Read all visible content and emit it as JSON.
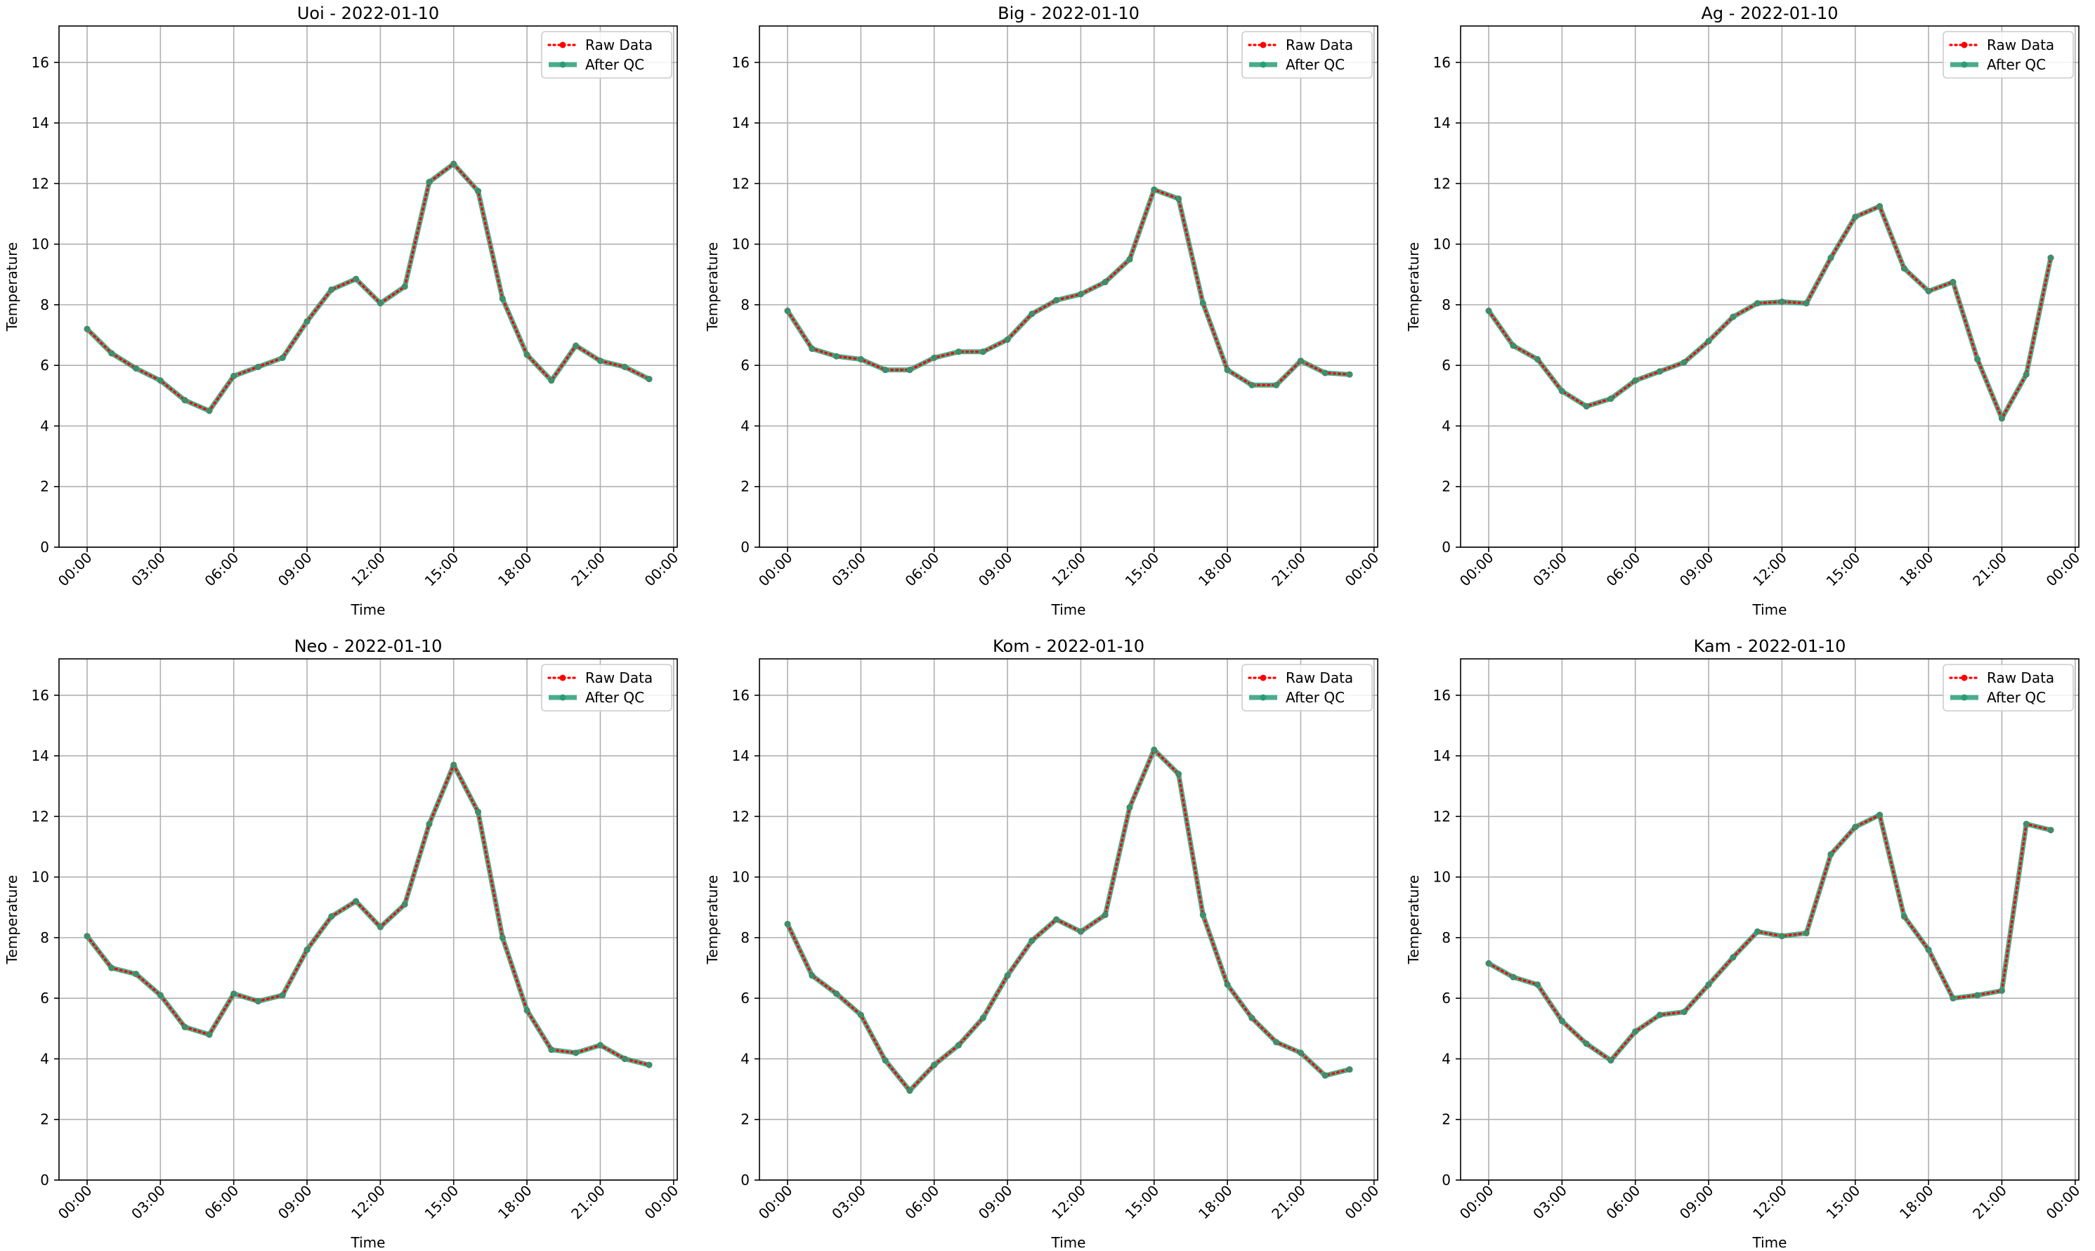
{
  "figure": {
    "legend": {
      "raw_label": "Raw Data",
      "qc_label": "After QC",
      "location": "upper right"
    }
  },
  "chart_data": [
    {
      "type": "line",
      "title": "Uoi - 2022-01-10",
      "xlabel": "Time",
      "ylabel": "Temperature",
      "x_tick_labels": [
        "00:00",
        "03:00",
        "06:00",
        "09:00",
        "12:00",
        "15:00",
        "18:00",
        "21:00",
        "00:00"
      ],
      "y_ticks": [
        0,
        2,
        4,
        6,
        8,
        10,
        12,
        14,
        16
      ],
      "ylim": [
        0,
        17.2
      ],
      "xlim_hours": [
        -1.15,
        24.15
      ],
      "grid": true,
      "legend_position": "top-right",
      "x_hours": [
        0,
        1,
        2,
        3,
        4,
        5,
        6,
        7,
        8,
        9,
        10,
        11,
        12,
        13,
        14,
        15,
        16,
        17,
        18,
        19,
        20,
        21,
        22,
        23
      ],
      "series": [
        {
          "name": "Raw Data",
          "color": "#ff0000",
          "style": "dotted",
          "values": [
            7.2,
            6.4,
            5.9,
            5.5,
            4.85,
            4.5,
            5.65,
            5.95,
            6.25,
            7.45,
            8.5,
            8.85,
            8.05,
            8.6,
            12.05,
            12.65,
            11.75,
            8.2,
            6.35,
            5.5,
            6.65,
            6.15,
            5.95,
            5.55
          ]
        },
        {
          "name": "After QC",
          "color": "#2a9d78",
          "style": "solid",
          "values": [
            7.2,
            6.4,
            5.9,
            5.5,
            4.85,
            4.5,
            5.65,
            5.95,
            6.25,
            7.45,
            8.5,
            8.85,
            8.05,
            8.6,
            12.05,
            12.65,
            11.75,
            8.2,
            6.35,
            5.5,
            6.65,
            6.15,
            5.95,
            5.55
          ]
        }
      ]
    },
    {
      "type": "line",
      "title": "Big - 2022-01-10",
      "xlabel": "Time",
      "ylabel": "Temperature",
      "x_tick_labels": [
        "00:00",
        "03:00",
        "06:00",
        "09:00",
        "12:00",
        "15:00",
        "18:00",
        "21:00",
        "00:00"
      ],
      "y_ticks": [
        0,
        2,
        4,
        6,
        8,
        10,
        12,
        14,
        16
      ],
      "ylim": [
        0,
        17.2
      ],
      "xlim_hours": [
        -1.15,
        24.15
      ],
      "grid": true,
      "legend_position": "top-right",
      "x_hours": [
        0,
        1,
        2,
        3,
        4,
        5,
        6,
        7,
        8,
        9,
        10,
        11,
        12,
        13,
        14,
        15,
        16,
        17,
        18,
        19,
        20,
        21,
        22,
        23
      ],
      "series": [
        {
          "name": "Raw Data",
          "color": "#ff0000",
          "style": "dotted",
          "values": [
            7.8,
            6.55,
            6.3,
            6.2,
            5.85,
            5.85,
            6.25,
            6.45,
            6.45,
            6.85,
            7.7,
            8.15,
            8.35,
            8.75,
            9.5,
            11.8,
            11.5,
            8.05,
            5.85,
            5.35,
            5.35,
            6.15,
            5.75,
            5.7
          ]
        },
        {
          "name": "After QC",
          "color": "#2a9d78",
          "style": "solid",
          "values": [
            7.8,
            6.55,
            6.3,
            6.2,
            5.85,
            5.85,
            6.25,
            6.45,
            6.45,
            6.85,
            7.7,
            8.15,
            8.35,
            8.75,
            9.5,
            11.8,
            11.5,
            8.05,
            5.85,
            5.35,
            5.35,
            6.15,
            5.75,
            5.7
          ]
        }
      ]
    },
    {
      "type": "line",
      "title": "Ag - 2022-01-10",
      "xlabel": "Time",
      "ylabel": "Temperature",
      "x_tick_labels": [
        "00:00",
        "03:00",
        "06:00",
        "09:00",
        "12:00",
        "15:00",
        "18:00",
        "21:00",
        "00:00"
      ],
      "y_ticks": [
        0,
        2,
        4,
        6,
        8,
        10,
        12,
        14,
        16
      ],
      "ylim": [
        0,
        17.2
      ],
      "xlim_hours": [
        -1.15,
        24.15
      ],
      "grid": true,
      "legend_position": "top-right",
      "x_hours": [
        0,
        1,
        2,
        3,
        4,
        5,
        6,
        7,
        8,
        9,
        10,
        11,
        12,
        13,
        14,
        15,
        16,
        17,
        18,
        19,
        20,
        21,
        22,
        23
      ],
      "series": [
        {
          "name": "Raw Data",
          "color": "#ff0000",
          "style": "dotted",
          "values": [
            7.8,
            6.65,
            6.2,
            5.15,
            4.65,
            4.9,
            5.5,
            5.8,
            6.1,
            6.8,
            7.6,
            8.05,
            8.1,
            8.05,
            9.55,
            10.9,
            11.25,
            9.2,
            8.45,
            8.75,
            6.2,
            4.25,
            5.7,
            9.55
          ]
        },
        {
          "name": "After QC",
          "color": "#2a9d78",
          "style": "solid",
          "values": [
            7.8,
            6.65,
            6.2,
            5.15,
            4.65,
            4.9,
            5.5,
            5.8,
            6.1,
            6.8,
            7.6,
            8.05,
            8.1,
            8.05,
            9.55,
            10.9,
            11.25,
            9.2,
            8.45,
            8.75,
            6.2,
            4.25,
            5.7,
            9.55
          ]
        }
      ]
    },
    {
      "type": "line",
      "title": "Neo - 2022-01-10",
      "xlabel": "Time",
      "ylabel": "Temperature",
      "x_tick_labels": [
        "00:00",
        "03:00",
        "06:00",
        "09:00",
        "12:00",
        "15:00",
        "18:00",
        "21:00",
        "00:00"
      ],
      "y_ticks": [
        0,
        2,
        4,
        6,
        8,
        10,
        12,
        14,
        16
      ],
      "ylim": [
        0,
        17.2
      ],
      "xlim_hours": [
        -1.15,
        24.15
      ],
      "grid": true,
      "legend_position": "top-right",
      "x_hours": [
        0,
        1,
        2,
        3,
        4,
        5,
        6,
        7,
        8,
        9,
        10,
        11,
        12,
        13,
        14,
        15,
        16,
        17,
        18,
        19,
        20,
        21,
        22,
        23
      ],
      "series": [
        {
          "name": "Raw Data",
          "color": "#ff0000",
          "style": "dotted",
          "values": [
            8.05,
            7.0,
            6.8,
            6.1,
            5.05,
            4.8,
            6.15,
            5.9,
            6.1,
            7.6,
            8.7,
            9.2,
            8.35,
            9.1,
            11.75,
            13.7,
            12.15,
            8.0,
            5.6,
            4.3,
            4.2,
            4.45,
            4.0,
            3.8
          ]
        },
        {
          "name": "After QC",
          "color": "#2a9d78",
          "style": "solid",
          "values": [
            8.05,
            7.0,
            6.8,
            6.1,
            5.05,
            4.8,
            6.15,
            5.9,
            6.1,
            7.6,
            8.7,
            9.2,
            8.35,
            9.1,
            11.75,
            13.7,
            12.15,
            8.0,
            5.6,
            4.3,
            4.2,
            4.45,
            4.0,
            3.8
          ]
        }
      ]
    },
    {
      "type": "line",
      "title": "Kom - 2022-01-10",
      "xlabel": "Time",
      "ylabel": "Temperature",
      "x_tick_labels": [
        "00:00",
        "03:00",
        "06:00",
        "09:00",
        "12:00",
        "15:00",
        "18:00",
        "21:00",
        "00:00"
      ],
      "y_ticks": [
        0,
        2,
        4,
        6,
        8,
        10,
        12,
        14,
        16
      ],
      "ylim": [
        0,
        17.2
      ],
      "xlim_hours": [
        -1.15,
        24.15
      ],
      "grid": true,
      "legend_position": "top-right",
      "x_hours": [
        0,
        1,
        2,
        3,
        4,
        5,
        6,
        7,
        8,
        9,
        10,
        11,
        12,
        13,
        14,
        15,
        16,
        17,
        18,
        19,
        20,
        21,
        22,
        23
      ],
      "series": [
        {
          "name": "Raw Data",
          "color": "#ff0000",
          "style": "dotted",
          "values": [
            8.45,
            6.75,
            6.15,
            5.45,
            3.95,
            2.95,
            3.8,
            4.45,
            5.35,
            6.75,
            7.9,
            8.6,
            8.2,
            8.75,
            12.3,
            14.2,
            13.4,
            8.75,
            6.45,
            5.35,
            4.55,
            4.2,
            3.45,
            3.65
          ]
        },
        {
          "name": "After QC",
          "color": "#2a9d78",
          "style": "solid",
          "values": [
            8.45,
            6.75,
            6.15,
            5.45,
            3.95,
            2.95,
            3.8,
            4.45,
            5.35,
            6.75,
            7.9,
            8.6,
            8.2,
            8.75,
            12.3,
            14.2,
            13.4,
            8.75,
            6.45,
            5.35,
            4.55,
            4.2,
            3.45,
            3.65
          ]
        }
      ]
    },
    {
      "type": "line",
      "title": "Kam - 2022-01-10",
      "xlabel": "Time",
      "ylabel": "Temperature",
      "x_tick_labels": [
        "00:00",
        "03:00",
        "06:00",
        "09:00",
        "12:00",
        "15:00",
        "18:00",
        "21:00",
        "00:00"
      ],
      "y_ticks": [
        0,
        2,
        4,
        6,
        8,
        10,
        12,
        14,
        16
      ],
      "ylim": [
        0,
        17.2
      ],
      "xlim_hours": [
        -1.15,
        24.15
      ],
      "grid": true,
      "legend_position": "top-right",
      "x_hours": [
        0,
        1,
        2,
        3,
        4,
        5,
        6,
        7,
        8,
        9,
        10,
        11,
        12,
        13,
        14,
        15,
        16,
        17,
        18,
        19,
        20,
        21,
        22,
        23
      ],
      "series": [
        {
          "name": "Raw Data",
          "color": "#ff0000",
          "style": "dotted",
          "values": [
            7.15,
            6.7,
            6.45,
            5.25,
            4.5,
            3.95,
            4.9,
            5.45,
            5.55,
            6.45,
            7.35,
            8.2,
            8.05,
            8.15,
            10.75,
            11.65,
            12.05,
            8.7,
            7.6,
            6.0,
            6.1,
            6.25,
            11.75,
            11.55
          ]
        },
        {
          "name": "After QC",
          "color": "#2a9d78",
          "style": "solid",
          "values": [
            7.15,
            6.7,
            6.45,
            5.25,
            4.5,
            3.95,
            4.9,
            5.45,
            5.55,
            6.45,
            7.35,
            8.2,
            8.05,
            8.15,
            10.75,
            11.65,
            12.05,
            8.7,
            7.6,
            6.0,
            6.1,
            6.25,
            11.75,
            11.55
          ]
        }
      ]
    }
  ]
}
